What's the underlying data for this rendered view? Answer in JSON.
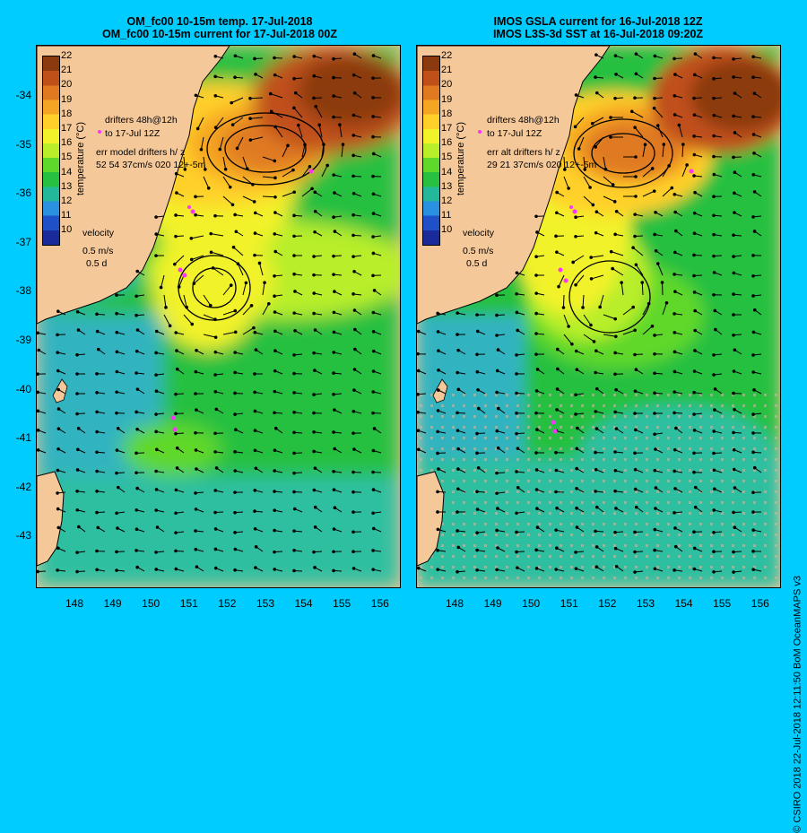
{
  "left_panel": {
    "title_line1": "OM_fc00 10-15m temp. 17-Jul-2018",
    "title_line2": "OM_fc00 10-15m current for 17-Jul-2018 00Z",
    "legend_drifters_line1": "drifters 48h@12h",
    "legend_drifters_line2": "to 17-Jul 12Z",
    "legend_err_line1": "err model drifters h/ z",
    "legend_err_line2": "52 54 37cm/s 020 12+-5m"
  },
  "right_panel": {
    "title_line1": "IMOS GSLA current for 16-Jul-2018 12Z",
    "title_line2": "IMOS L3S-3d SST at 16-Jul-2018 09:20Z",
    "legend_drifters_line1": "drifters 48h@12h",
    "legend_drifters_line2": "to 17-Jul 12Z",
    "legend_err_line1": "err alt drifters h/ z",
    "legend_err_line2": "29 21 37cm/s 020 12+-5m"
  },
  "velocity_legend": {
    "label": "velocity",
    "speed": "0.5 m/s",
    "duration": "0.5 d"
  },
  "colorbar": {
    "title": "temperature (°C)",
    "ticks": [
      "22",
      "21",
      "20",
      "19",
      "18",
      "17",
      "16",
      "15",
      "14",
      "13",
      "12",
      "11",
      "10"
    ],
    "colors": [
      "#8b3a0f",
      "#c0501a",
      "#e07a20",
      "#f5a524",
      "#ffd02a",
      "#f2f22a",
      "#b8ee2a",
      "#5ed82a",
      "#28c040",
      "#24b89a",
      "#2a90e0",
      "#2050c8",
      "#1a2a9a"
    ]
  },
  "latitude_labels": [
    "-34",
    "-35",
    "-36",
    "-37",
    "-38",
    "-39",
    "-40",
    "-41",
    "-42",
    "-43"
  ],
  "longitude_labels": [
    "148",
    "149",
    "150",
    "151",
    "152",
    "153",
    "154",
    "155",
    "156"
  ],
  "credit": "© CSIRO 2018   22-Jul-2018 12:11:50 BoM OceanMAPS v3",
  "colors": {
    "background": "#00ccff",
    "land": "#f5c89a",
    "drifter": "#ff33ff"
  }
}
